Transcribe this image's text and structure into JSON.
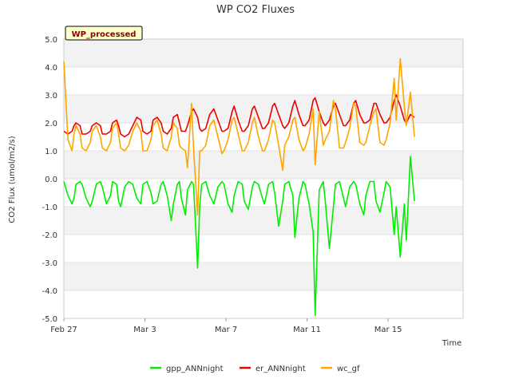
{
  "chart_data": {
    "type": "line",
    "title": "WP CO2 Fluxes",
    "xlabel": "Time",
    "ylabel": "CO2 Flux (umol/m2/s)",
    "ylim": [
      -5.0,
      5.0
    ],
    "xlim": [
      0,
      19.7
    ],
    "grid": true,
    "legend_position": "bottom",
    "badge": "WP_processed",
    "y_ticks": [
      {
        "value": 5.0,
        "label": "5.0"
      },
      {
        "value": 4.0,
        "label": "4.0"
      },
      {
        "value": 3.0,
        "label": "3.0"
      },
      {
        "value": 2.0,
        "label": "2.0"
      },
      {
        "value": 1.0,
        "label": "1.0"
      },
      {
        "value": 0.0,
        "label": "0.0"
      },
      {
        "value": -1.0,
        "label": "-1.0"
      },
      {
        "value": -2.0,
        "label": "-2.0"
      },
      {
        "value": -3.0,
        "label": "-3.0"
      },
      {
        "value": -4.0,
        "label": "-4.0"
      },
      {
        "value": -5.0,
        "label": "-5.0"
      }
    ],
    "x_ticks": [
      {
        "value": 0,
        "label": "Feb 27"
      },
      {
        "value": 4,
        "label": "Mar 3"
      },
      {
        "value": 8,
        "label": "Mar 7"
      },
      {
        "value": 12,
        "label": "Mar 11"
      },
      {
        "value": 16,
        "label": "Mar 15"
      }
    ],
    "series": [
      {
        "name": "gpp_ANNnight",
        "color": "#00ee00",
        "x": [
          0.0,
          0.2,
          0.4,
          0.5,
          0.6,
          0.8,
          0.9,
          1.1,
          1.3,
          1.4,
          1.6,
          1.8,
          1.9,
          2.1,
          2.3,
          2.4,
          2.6,
          2.7,
          2.8,
          3.0,
          3.2,
          3.4,
          3.6,
          3.8,
          3.9,
          4.1,
          4.3,
          4.4,
          4.6,
          4.8,
          4.9,
          5.1,
          5.3,
          5.4,
          5.6,
          5.7,
          5.8,
          6.0,
          6.1,
          6.3,
          6.4,
          6.6,
          6.7,
          6.8,
          7.0,
          7.2,
          7.4,
          7.6,
          7.8,
          7.9,
          8.1,
          8.3,
          8.4,
          8.6,
          8.8,
          8.9,
          9.1,
          9.3,
          9.4,
          9.6,
          9.8,
          9.9,
          10.1,
          10.3,
          10.4,
          10.6,
          10.8,
          10.9,
          11.1,
          11.3,
          11.4,
          11.6,
          11.8,
          11.9,
          12.1,
          12.3,
          12.4,
          12.6,
          12.8,
          12.9,
          13.1,
          13.3,
          13.4,
          13.6,
          13.8,
          13.9,
          14.1,
          14.3,
          14.4,
          14.6,
          14.8,
          14.9,
          15.1,
          15.3,
          15.4,
          15.6,
          15.8,
          15.9,
          16.1,
          16.3,
          16.4,
          16.6,
          16.8,
          16.9,
          17.1,
          17.3
        ],
        "values": [
          -0.1,
          -0.6,
          -0.9,
          -0.7,
          -0.2,
          -0.1,
          -0.2,
          -0.7,
          -1.0,
          -0.8,
          -0.2,
          -0.1,
          -0.3,
          -0.9,
          -0.6,
          -0.1,
          -0.2,
          -0.8,
          -1.0,
          -0.3,
          -0.1,
          -0.2,
          -0.7,
          -0.9,
          -0.2,
          -0.1,
          -0.5,
          -0.9,
          -0.8,
          -0.2,
          -0.1,
          -0.6,
          -1.5,
          -0.9,
          -0.2,
          -0.1,
          -0.7,
          -1.3,
          -0.4,
          -0.1,
          -0.2,
          -3.2,
          -1.0,
          -0.2,
          -0.1,
          -0.6,
          -0.9,
          -0.3,
          -0.1,
          -0.2,
          -0.9,
          -1.2,
          -0.6,
          -0.1,
          -0.2,
          -0.8,
          -1.1,
          -0.3,
          -0.1,
          -0.2,
          -0.7,
          -0.9,
          -0.2,
          -0.1,
          -0.5,
          -1.7,
          -0.8,
          -0.2,
          -0.1,
          -0.6,
          -2.1,
          -0.7,
          -0.1,
          -0.2,
          -0.9,
          -1.9,
          -4.9,
          -0.4,
          -0.1,
          -0.8,
          -2.5,
          -1.0,
          -0.2,
          -0.1,
          -0.7,
          -1.0,
          -0.3,
          -0.1,
          -0.2,
          -0.9,
          -1.3,
          -0.6,
          -0.1,
          -0.1,
          -0.8,
          -1.2,
          -0.5,
          -0.1,
          -0.3,
          -2.0,
          -1.0,
          -2.8,
          -0.9,
          -2.2,
          0.8,
          -0.8
        ]
      },
      {
        "name": "er_ANNnight",
        "color": "#ee0000",
        "x": [
          0.0,
          0.2,
          0.4,
          0.5,
          0.6,
          0.8,
          0.9,
          1.1,
          1.3,
          1.4,
          1.6,
          1.8,
          1.9,
          2.1,
          2.3,
          2.4,
          2.6,
          2.7,
          2.8,
          3.0,
          3.2,
          3.4,
          3.6,
          3.8,
          3.9,
          4.1,
          4.3,
          4.4,
          4.6,
          4.8,
          4.9,
          5.1,
          5.3,
          5.4,
          5.6,
          5.7,
          5.8,
          6.0,
          6.1,
          6.3,
          6.4,
          6.6,
          6.7,
          6.8,
          7.0,
          7.2,
          7.4,
          7.6,
          7.8,
          7.9,
          8.1,
          8.3,
          8.4,
          8.6,
          8.8,
          8.9,
          9.1,
          9.3,
          9.4,
          9.6,
          9.8,
          9.9,
          10.1,
          10.3,
          10.4,
          10.6,
          10.8,
          10.9,
          11.1,
          11.3,
          11.4,
          11.6,
          11.8,
          11.9,
          12.1,
          12.3,
          12.4,
          12.6,
          12.8,
          12.9,
          13.1,
          13.3,
          13.4,
          13.6,
          13.8,
          13.9,
          14.1,
          14.3,
          14.4,
          14.6,
          14.8,
          14.9,
          15.1,
          15.3,
          15.4,
          15.6,
          15.8,
          15.9,
          16.1,
          16.3,
          16.4,
          16.6,
          16.8,
          16.9,
          17.1,
          17.3
        ],
        "values": [
          1.7,
          1.6,
          1.7,
          1.9,
          2.0,
          1.9,
          1.6,
          1.6,
          1.7,
          1.9,
          2.0,
          1.9,
          1.6,
          1.6,
          1.7,
          2.0,
          2.1,
          1.9,
          1.6,
          1.5,
          1.6,
          1.9,
          2.2,
          2.1,
          1.7,
          1.6,
          1.7,
          2.1,
          2.2,
          2.0,
          1.7,
          1.6,
          1.8,
          2.2,
          2.3,
          2.0,
          1.7,
          1.7,
          1.9,
          2.4,
          2.5,
          2.2,
          1.8,
          1.7,
          1.8,
          2.3,
          2.5,
          2.1,
          1.7,
          1.7,
          1.8,
          2.4,
          2.6,
          2.1,
          1.7,
          1.7,
          1.9,
          2.5,
          2.6,
          2.2,
          1.8,
          1.8,
          2.0,
          2.6,
          2.7,
          2.3,
          1.9,
          1.8,
          2.0,
          2.6,
          2.8,
          2.3,
          1.9,
          1.9,
          2.1,
          2.8,
          2.9,
          2.4,
          2.0,
          1.9,
          2.1,
          2.6,
          2.7,
          2.3,
          1.9,
          1.9,
          2.1,
          2.7,
          2.8,
          2.3,
          2.0,
          2.0,
          2.1,
          2.7,
          2.7,
          2.3,
          2.0,
          2.0,
          2.2,
          2.8,
          3.0,
          2.6,
          2.1,
          2.0,
          2.3,
          2.2
        ]
      },
      {
        "name": "wc_gf",
        "color": "#ffa500",
        "x": [
          0.0,
          0.2,
          0.4,
          0.5,
          0.6,
          0.8,
          0.9,
          1.1,
          1.3,
          1.4,
          1.6,
          1.8,
          1.9,
          2.1,
          2.3,
          2.4,
          2.6,
          2.7,
          2.8,
          3.0,
          3.2,
          3.4,
          3.6,
          3.8,
          3.9,
          4.1,
          4.3,
          4.4,
          4.6,
          4.8,
          4.9,
          5.1,
          5.3,
          5.4,
          5.6,
          5.7,
          5.8,
          6.0,
          6.1,
          6.3,
          6.4,
          6.6,
          6.7,
          6.8,
          7.0,
          7.2,
          7.4,
          7.6,
          7.8,
          7.9,
          8.1,
          8.3,
          8.4,
          8.6,
          8.8,
          8.9,
          9.1,
          9.3,
          9.4,
          9.6,
          9.8,
          9.9,
          10.1,
          10.3,
          10.4,
          10.6,
          10.8,
          10.9,
          11.1,
          11.3,
          11.4,
          11.6,
          11.8,
          11.9,
          12.1,
          12.3,
          12.4,
          12.6,
          12.8,
          12.9,
          13.1,
          13.3,
          13.4,
          13.6,
          13.8,
          13.9,
          14.1,
          14.3,
          14.4,
          14.6,
          14.8,
          14.9,
          15.1,
          15.3,
          15.4,
          15.6,
          15.8,
          15.9,
          16.1,
          16.3,
          16.4,
          16.6,
          16.8,
          16.9,
          17.1,
          17.3
        ],
        "values": [
          4.2,
          1.4,
          1.0,
          1.6,
          1.9,
          1.6,
          1.1,
          1.0,
          1.3,
          1.7,
          1.9,
          1.5,
          1.1,
          1.0,
          1.3,
          1.8,
          2.0,
          1.6,
          1.1,
          1.0,
          1.2,
          1.7,
          2.0,
          1.7,
          1.0,
          1.0,
          1.4,
          1.9,
          2.1,
          1.6,
          1.1,
          1.0,
          1.5,
          2.0,
          1.8,
          1.2,
          1.1,
          1.0,
          0.4,
          2.7,
          1.1,
          -1.3,
          1.0,
          1.0,
          1.2,
          1.9,
          2.1,
          1.5,
          0.9,
          1.0,
          1.4,
          2.1,
          2.2,
          1.6,
          1.0,
          1.0,
          1.3,
          2.0,
          2.2,
          1.5,
          1.0,
          1.0,
          1.4,
          2.1,
          2.0,
          1.2,
          0.3,
          1.2,
          1.5,
          2.1,
          2.2,
          1.4,
          1.0,
          1.1,
          1.6,
          2.5,
          0.5,
          2.4,
          1.2,
          1.4,
          1.7,
          2.8,
          2.5,
          1.1,
          1.1,
          1.3,
          1.8,
          2.7,
          2.6,
          1.3,
          1.2,
          1.3,
          1.9,
          2.4,
          2.5,
          1.3,
          1.2,
          1.4,
          2.0,
          3.6,
          2.1,
          4.3,
          2.6,
          1.9,
          3.1,
          1.5
        ]
      }
    ]
  }
}
